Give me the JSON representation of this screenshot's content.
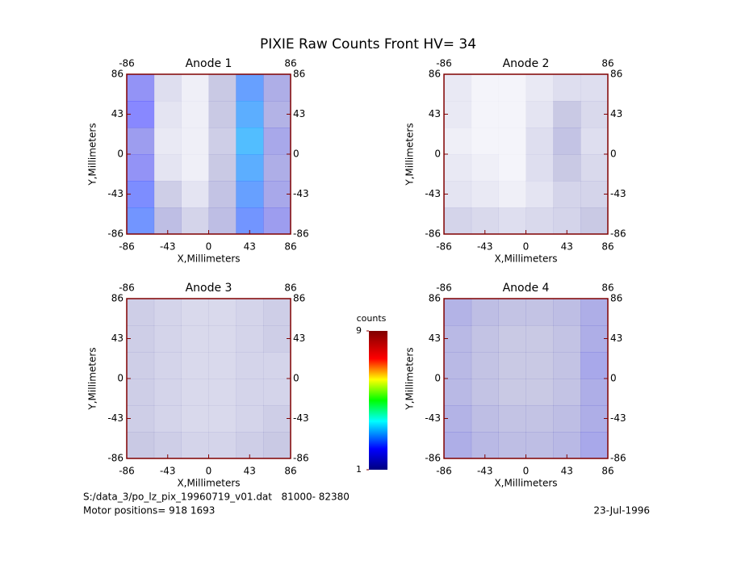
{
  "title": "PIXIE Raw Counts Front HV= 34",
  "chart_data": [
    {
      "type": "heatmap",
      "title": "Anode 1",
      "xlabel": "X,Millimeters",
      "ylabel": "Y,Millimeters",
      "xlim": [
        -86,
        86
      ],
      "ylim": [
        -86,
        86
      ],
      "xticks": [
        -86,
        -43,
        0,
        43,
        86
      ],
      "yticks": [
        -86,
        -43,
        0,
        43,
        86
      ],
      "x2lim": [
        -86,
        86
      ],
      "x2ticks": [
        -86,
        86
      ],
      "y2lim": [
        -86,
        86
      ],
      "y2ticks": [
        -86,
        -43,
        0,
        43,
        86
      ],
      "values": [
        [
          2.0,
          0.6,
          0.3,
          1.0,
          2.8,
          1.5
        ],
        [
          2.2,
          0.5,
          0.3,
          1.0,
          3.0,
          1.4
        ],
        [
          1.8,
          0.4,
          0.3,
          0.9,
          3.2,
          1.6
        ],
        [
          2.0,
          0.5,
          0.3,
          1.0,
          3.0,
          1.5
        ],
        [
          2.4,
          0.9,
          0.5,
          1.1,
          2.8,
          1.6
        ],
        [
          2.6,
          1.2,
          0.8,
          1.2,
          2.6,
          1.8
        ]
      ]
    },
    {
      "type": "heatmap",
      "title": "Anode 2",
      "xlabel": "X,Millimeters",
      "ylabel": "Y,Millimeters",
      "xlim": [
        -86,
        86
      ],
      "ylim": [
        -86,
        86
      ],
      "xticks": [
        -86,
        -43,
        0,
        43,
        86
      ],
      "yticks": [
        -86,
        -43,
        0,
        43,
        86
      ],
      "x2lim": [
        -86,
        86
      ],
      "x2ticks": [
        -86,
        86
      ],
      "y2lim": [
        -86,
        86
      ],
      "y2ticks": [
        -86,
        -43,
        0,
        43,
        86
      ],
      "values": [
        [
          0.4,
          0.2,
          0.2,
          0.4,
          0.6,
          0.6
        ],
        [
          0.4,
          0.2,
          0.2,
          0.5,
          1.0,
          0.7
        ],
        [
          0.3,
          0.2,
          0.2,
          0.6,
          1.1,
          0.6
        ],
        [
          0.4,
          0.3,
          0.2,
          0.6,
          1.0,
          0.7
        ],
        [
          0.5,
          0.4,
          0.3,
          0.5,
          0.8,
          0.8
        ],
        [
          0.8,
          0.7,
          0.6,
          0.7,
          0.8,
          1.0
        ]
      ]
    },
    {
      "type": "heatmap",
      "title": "Anode 3",
      "xlabel": "X,Millimeters",
      "ylabel": "Y,Millimeters",
      "xlim": [
        -86,
        86
      ],
      "ylim": [
        -86,
        86
      ],
      "xticks": [
        -86,
        -43,
        0,
        43,
        86
      ],
      "yticks": [
        -86,
        -43,
        0,
        43,
        86
      ],
      "x2lim": [
        -86,
        86
      ],
      "x2ticks": [
        -86,
        86
      ],
      "y2lim": [
        -86,
        86
      ],
      "y2ticks": [
        -86,
        -43,
        0,
        43,
        86
      ],
      "values": [
        [
          0.9,
          0.8,
          0.7,
          0.7,
          0.8,
          0.9
        ],
        [
          0.9,
          0.8,
          0.7,
          0.7,
          0.8,
          0.9
        ],
        [
          0.9,
          0.8,
          0.7,
          0.7,
          0.8,
          0.8
        ],
        [
          0.9,
          0.8,
          0.7,
          0.7,
          0.8,
          0.8
        ],
        [
          0.9,
          0.8,
          0.7,
          0.7,
          0.8,
          0.9
        ],
        [
          1.0,
          0.9,
          0.8,
          0.8,
          0.9,
          1.0
        ]
      ]
    },
    {
      "type": "heatmap",
      "title": "Anode 4",
      "xlabel": "X,Millimeters",
      "ylabel": "Y,Millimeters",
      "xlim": [
        -86,
        86
      ],
      "ylim": [
        -86,
        86
      ],
      "xticks": [
        -86,
        -43,
        0,
        43,
        86
      ],
      "yticks": [
        -86,
        -43,
        0,
        43,
        86
      ],
      "x2lim": [
        -86,
        86
      ],
      "x2ticks": [
        -86,
        86
      ],
      "y2lim": [
        -86,
        86
      ],
      "y2ticks": [
        -86,
        -43,
        0,
        43,
        86
      ],
      "values": [
        [
          1.4,
          1.2,
          1.1,
          1.1,
          1.2,
          1.5
        ],
        [
          1.3,
          1.1,
          1.0,
          1.0,
          1.1,
          1.5
        ],
        [
          1.3,
          1.1,
          1.0,
          1.0,
          1.1,
          1.6
        ],
        [
          1.3,
          1.1,
          1.0,
          1.0,
          1.1,
          1.5
        ],
        [
          1.4,
          1.2,
          1.1,
          1.1,
          1.2,
          1.5
        ],
        [
          1.5,
          1.3,
          1.2,
          1.2,
          1.3,
          1.6
        ]
      ]
    }
  ],
  "colorbar": {
    "label": "counts",
    "clim": [
      1,
      9
    ],
    "ticks": [
      1,
      9
    ]
  },
  "footer": {
    "file": "S:/data_3/po_lz_pix_19960719_v01.dat   81000- 82380",
    "motor": "Motor positions= 918 1693",
    "date": "23-Jul-1996"
  }
}
